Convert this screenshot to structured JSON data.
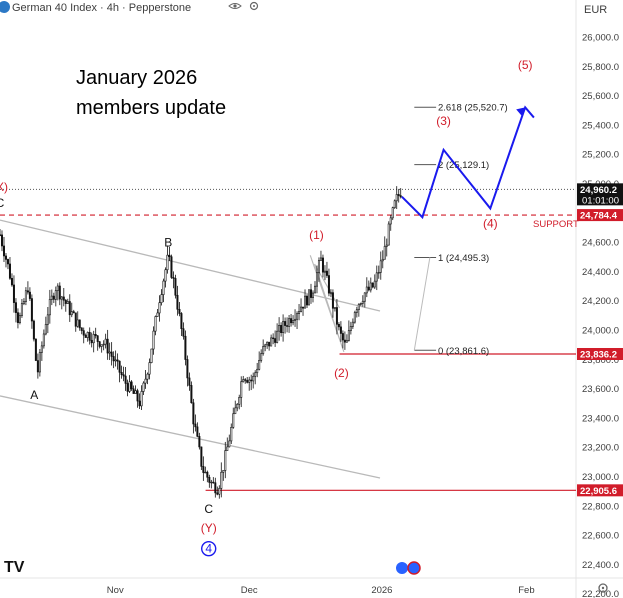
{
  "header": {
    "title": "German 40 Index · 4h · Pepperstone",
    "currency": "EUR"
  },
  "note": {
    "line1": "January 2026",
    "line2": "members update"
  },
  "colors": {
    "red": "#d11c2a",
    "blue": "#1a1aee",
    "candle": "#111111",
    "channel": "#b9b9b9"
  },
  "chart_data": {
    "type": "candlestick",
    "symbol": "German 40 Index",
    "timeframe": "4h",
    "ylim": [
      22100,
      26200
    ],
    "y_ticks": [
      22200,
      22400,
      22600,
      22800,
      23000,
      23200,
      23400,
      23600,
      23800,
      24000,
      24200,
      24400,
      24600,
      24800,
      25000,
      25200,
      25400,
      25600,
      25800,
      26000
    ],
    "y_tick_labels": [
      "22,200.0",
      "22,400.0",
      "22,600.0",
      "22,800.0",
      "23,000.0",
      "23,200.0",
      "23,400.0",
      "23,600.0",
      "23,800.0",
      "24,000.0",
      "24,200.0",
      "24,400.0",
      "24,600.0",
      "24,800.0",
      "25,000.0",
      "25,200.0",
      "25,400.0",
      "25,600.0",
      "25,800.0",
      "26,000.0"
    ],
    "x_ticks": [
      {
        "label": "Nov",
        "pos": 0.185
      },
      {
        "label": "Dec",
        "pos": 0.4
      },
      {
        "label": "2026",
        "pos": 0.613
      },
      {
        "label": "Feb",
        "pos": 0.845
      }
    ],
    "price_path": [
      [
        0.0,
        24650
      ],
      [
        0.015,
        24400
      ],
      [
        0.03,
        24050
      ],
      [
        0.045,
        24300
      ],
      [
        0.06,
        23700
      ],
      [
        0.075,
        24100
      ],
      [
        0.09,
        24300
      ],
      [
        0.11,
        24150
      ],
      [
        0.13,
        24000
      ],
      [
        0.15,
        23950
      ],
      [
        0.17,
        23900
      ],
      [
        0.2,
        23650
      ],
      [
        0.225,
        23500
      ],
      [
        0.24,
        23800
      ],
      [
        0.255,
        24200
      ],
      [
        0.27,
        24500
      ],
      [
        0.28,
        24300
      ],
      [
        0.295,
        23900
      ],
      [
        0.31,
        23400
      ],
      [
        0.325,
        23050
      ],
      [
        0.34,
        22950
      ],
      [
        0.35,
        22920
      ],
      [
        0.36,
        23100
      ],
      [
        0.375,
        23400
      ],
      [
        0.39,
        23700
      ],
      [
        0.405,
        23650
      ],
      [
        0.42,
        23850
      ],
      [
        0.44,
        23950
      ],
      [
        0.46,
        24050
      ],
      [
        0.48,
        24150
      ],
      [
        0.5,
        24250
      ],
      [
        0.515,
        24480
      ],
      [
        0.53,
        24250
      ],
      [
        0.545,
        23980
      ],
      [
        0.555,
        23880
      ],
      [
        0.57,
        24150
      ],
      [
        0.585,
        24250
      ],
      [
        0.6,
        24300
      ],
      [
        0.615,
        24500
      ],
      [
        0.625,
        24700
      ],
      [
        0.635,
        24880
      ],
      [
        0.645,
        24960
      ]
    ],
    "current_price": {
      "value": 24960.2,
      "label": "24,960.2",
      "timer": "01:01:00"
    },
    "levels": [
      {
        "value": 24784.4,
        "label": "24,784.4",
        "text": "SUPPORT",
        "style": "dashed"
      },
      {
        "value": 23836.2,
        "label": "23,836.2",
        "style": "solid"
      },
      {
        "value": 22905.6,
        "label": "22,905.6",
        "style": "solid"
      }
    ],
    "fib_levels": [
      {
        "ratio": "2.618",
        "value": 25520.7,
        "label": "2.618 (25,520.7)"
      },
      {
        "ratio": "2",
        "value": 25129.1,
        "label": "2 (25,129.1)"
      },
      {
        "ratio": "1",
        "value": 24495.3,
        "label": "1 (24,495.3)"
      },
      {
        "ratio": "0",
        "value": 23861.6,
        "label": "0 (23,861.6)"
      }
    ],
    "wave_labels": [
      {
        "text": "(X)",
        "x": 0.0,
        "y": 24950,
        "color": "red"
      },
      {
        "text": "C",
        "x": 0.0,
        "y": 24840,
        "color": "black"
      },
      {
        "text": "A",
        "x": 0.055,
        "y": 23530,
        "color": "black"
      },
      {
        "text": "B",
        "x": 0.27,
        "y": 24570,
        "color": "black"
      },
      {
        "text": "C",
        "x": 0.335,
        "y": 22750,
        "color": "black"
      },
      {
        "text": "(Y)",
        "x": 0.335,
        "y": 22620,
        "color": "red"
      },
      {
        "text": "4",
        "x": 0.335,
        "y": 22480,
        "color": "blue-circle"
      },
      {
        "text": "(1)",
        "x": 0.508,
        "y": 24620,
        "color": "red"
      },
      {
        "text": "(2)",
        "x": 0.548,
        "y": 23680,
        "color": "red"
      },
      {
        "text": "(3)",
        "x": 0.712,
        "y": 25400,
        "color": "red"
      },
      {
        "text": "(4)",
        "x": 0.787,
        "y": 24700,
        "color": "red"
      },
      {
        "text": "(5)",
        "x": 0.843,
        "y": 25780,
        "color": "red"
      }
    ],
    "projection": [
      [
        0.645,
        24910
      ],
      [
        0.678,
        24770
      ],
      [
        0.712,
        25230
      ],
      [
        0.787,
        24830
      ],
      [
        0.843,
        25520
      ],
      [
        0.857,
        25450
      ]
    ]
  },
  "footer": {
    "logo": "TV"
  }
}
